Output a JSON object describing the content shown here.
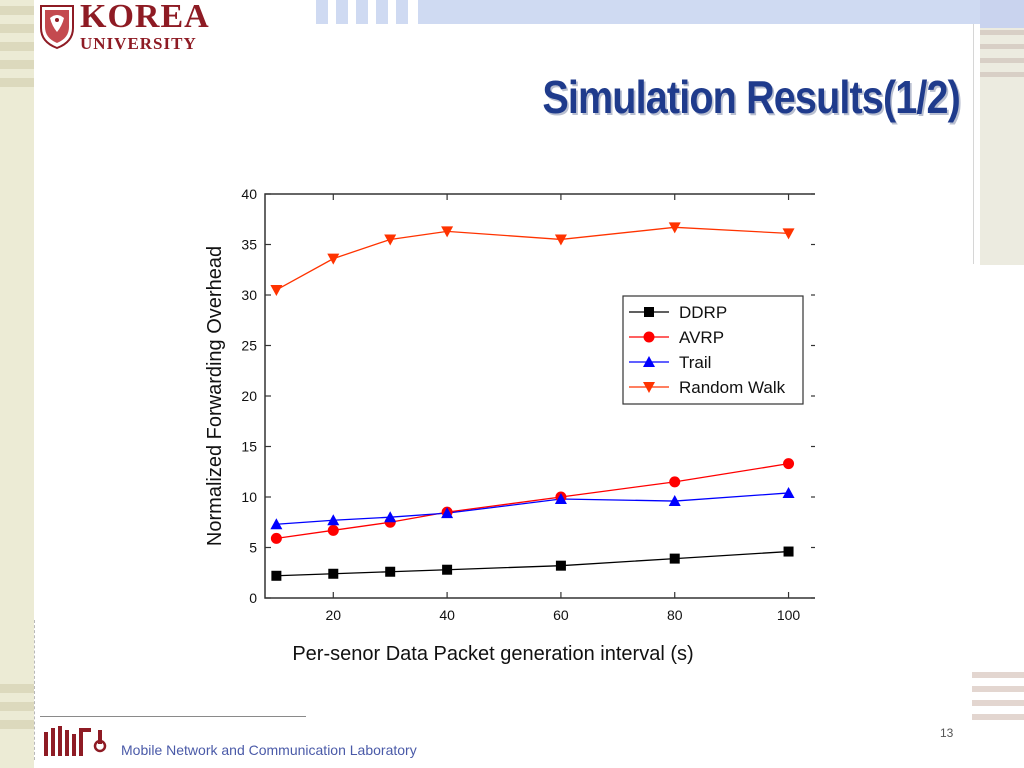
{
  "slide": {
    "title": "Simulation Results(1/2)",
    "page_number": "13",
    "footer_text": "Mobile Network and Communication Laboratory",
    "logo": {
      "line1": "KOREA",
      "line2": "UNIVERSITY",
      "seal_text": "KOREA UNIVERSITY"
    },
    "colors": {
      "title": "#1f3b8c",
      "logo": "#8e1b24",
      "footer_text": "#4a5aa8"
    }
  },
  "chart_data": {
    "type": "line",
    "title": "",
    "xlabel": "Per-senor Data Packet generation interval (s)",
    "ylabel": "Normalized Forwarding Overhead",
    "xlim": [
      8,
      105
    ],
    "ylim": [
      0,
      40
    ],
    "x_ticks": [
      20,
      40,
      60,
      80,
      100
    ],
    "y_ticks": [
      0,
      5,
      10,
      15,
      20,
      25,
      30,
      35,
      40
    ],
    "grid": false,
    "legend_position": "right",
    "x": [
      10,
      20,
      30,
      40,
      60,
      80,
      100
    ],
    "series": [
      {
        "name": "DDRP",
        "color": "#000000",
        "marker": "square",
        "values": [
          2.2,
          2.4,
          2.6,
          2.8,
          3.2,
          3.9,
          4.6
        ]
      },
      {
        "name": "AVRP",
        "color": "#ff0000",
        "marker": "circle",
        "values": [
          5.9,
          6.7,
          7.5,
          8.5,
          10.0,
          11.5,
          13.3
        ]
      },
      {
        "name": "Trail",
        "color": "#0000ff",
        "marker": "triangle-up",
        "values": [
          7.3,
          7.7,
          8.0,
          8.4,
          9.8,
          9.6,
          10.4
        ]
      },
      {
        "name": "Random Walk",
        "color": "#ff3300",
        "marker": "triangle-down",
        "values": [
          30.5,
          33.6,
          35.5,
          36.3,
          35.5,
          36.7,
          36.1
        ]
      }
    ]
  }
}
